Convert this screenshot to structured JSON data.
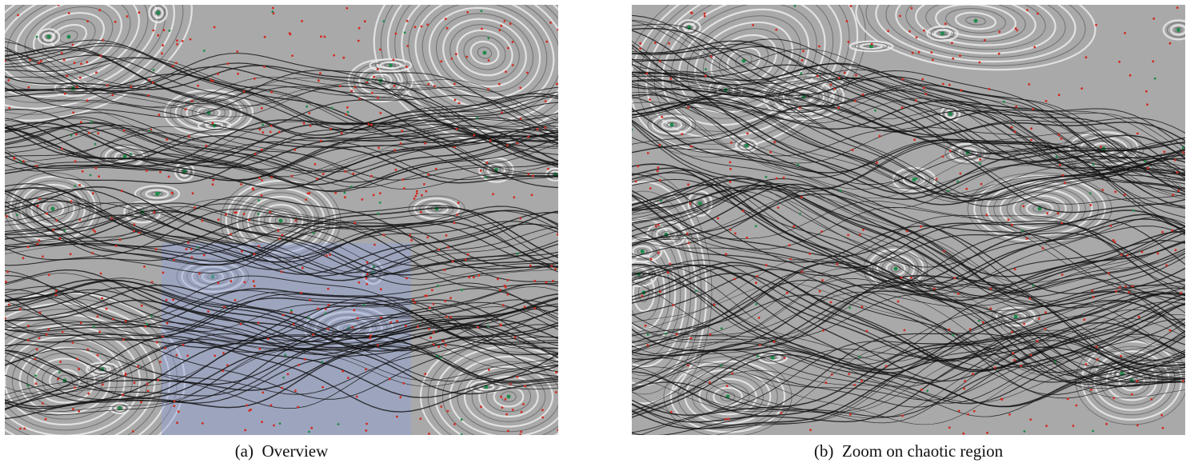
{
  "figure": {
    "captions": {
      "a": "(a)  Overview",
      "b": "(b)  Zoom on chaotic region"
    },
    "colors": {
      "background": "#a9a9a9",
      "orbit_light": "#e8e8e8",
      "orbit_dark": "#6a6a6a",
      "chaotic_lines": "#111111",
      "critical_points_red": "#d22a1f",
      "critical_points_green": "#1f8a4a",
      "zoom_highlight": "#8ea0d6"
    },
    "panels": [
      {
        "id": "a",
        "content": "Poincaré map overview with island chains and chaotic separatrix layers",
        "zoom_region_highlighted": true
      },
      {
        "id": "b",
        "content": "Magnified view of the chaotic region",
        "zoom_region_highlighted": false
      }
    ]
  }
}
